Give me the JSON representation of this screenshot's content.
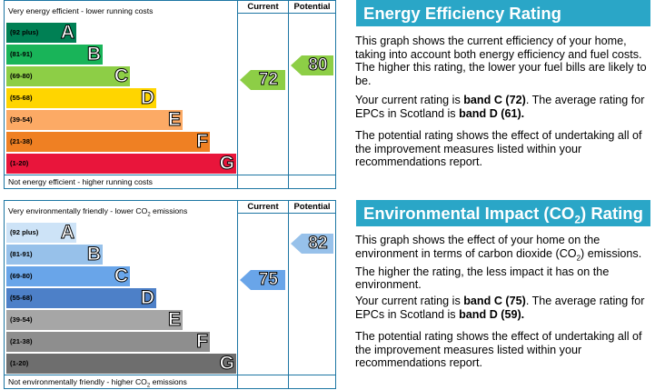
{
  "colors": {
    "frame": "#1d76a3",
    "heading_bg": "#2aa6c7"
  },
  "energy_efficiency": {
    "heading": "Energy Efficiency Rating",
    "top_caption": "Very energy efficient - lower running costs",
    "bottom_caption": "Not energy efficient - higher running costs",
    "current_header": "Current",
    "potential_header": "Potential",
    "paragraph_1": "This graph shows the current efficiency of your home, taking into account both energy efficiency and fuel costs. The higher this rating, the lower your fuel bills are likely to be.",
    "paragraph_2_pre": "Your current rating is ",
    "paragraph_2_band": "band C (72)",
    "paragraph_2_mid": ". The average rating for EPCs in Scotland is ",
    "paragraph_2_avg": "band D (61).",
    "paragraph_3": "The potential rating shows the effect of undertaking all of the improvement measures listed within your recommendations report."
  },
  "environmental_impact": {
    "heading_pre": "Environmental Impact (CO",
    "heading_sub": "2",
    "heading_post": ") Rating",
    "top_caption_pre": "Very environmentally friendly - lower CO",
    "top_caption_sub": "2",
    "top_caption_post": " emissions",
    "bottom_caption_pre": "Not environmentally friendly - higher CO",
    "bottom_caption_sub": "2",
    "bottom_caption_post": " emissions",
    "current_header": "Current",
    "potential_header": "Potential",
    "paragraph_1_pre": "This graph shows the effect of your home on the environment in terms of carbon dioxide (CO",
    "paragraph_1_sub": "2",
    "paragraph_1_post": ") emissions. The higher the rating, the less impact it has on the environment.",
    "paragraph_2_pre": "Your current rating is ",
    "paragraph_2_band": "band C (75)",
    "paragraph_2_mid": ". The average rating for EPCs in Scotland is ",
    "paragraph_2_avg": "band D (59).",
    "paragraph_3": "The potential rating shows the effect of undertaking all of the improvement measures listed within your recommendations report."
  },
  "chart_data": [
    {
      "type": "bar",
      "categories": [
        "A",
        "B",
        "C",
        "D",
        "E",
        "F",
        "G"
      ],
      "ranges": [
        "(92 plus)",
        "(81-91)",
        "(69-80)",
        "(55-68)",
        "(39-54)",
        "(21-38)",
        "(1-20)"
      ],
      "band_colors": [
        "#008054",
        "#19b459",
        "#8dce46",
        "#ffd500",
        "#fcaa65",
        "#ef8023",
        "#e9153b"
      ],
      "current": {
        "value": 72,
        "band": "C",
        "color": "#8dce46"
      },
      "potential": {
        "value": 80,
        "band": "C",
        "color": "#8dce46"
      }
    },
    {
      "type": "bar",
      "categories": [
        "A",
        "B",
        "C",
        "D",
        "E",
        "F",
        "G"
      ],
      "ranges": [
        "(92 plus)",
        "(81-91)",
        "(69-80)",
        "(55-68)",
        "(39-54)",
        "(21-38)",
        "(1-20)"
      ],
      "band_colors": [
        "#cde3f7",
        "#97c1ea",
        "#69a5e9",
        "#4d80c8",
        "#a6a6a6",
        "#8e8e8e",
        "#6e6e6e"
      ],
      "current": {
        "value": 75,
        "band": "C",
        "color": "#69a5e9"
      },
      "potential": {
        "value": 82,
        "band": "B",
        "color": "#97c1ea"
      }
    }
  ]
}
